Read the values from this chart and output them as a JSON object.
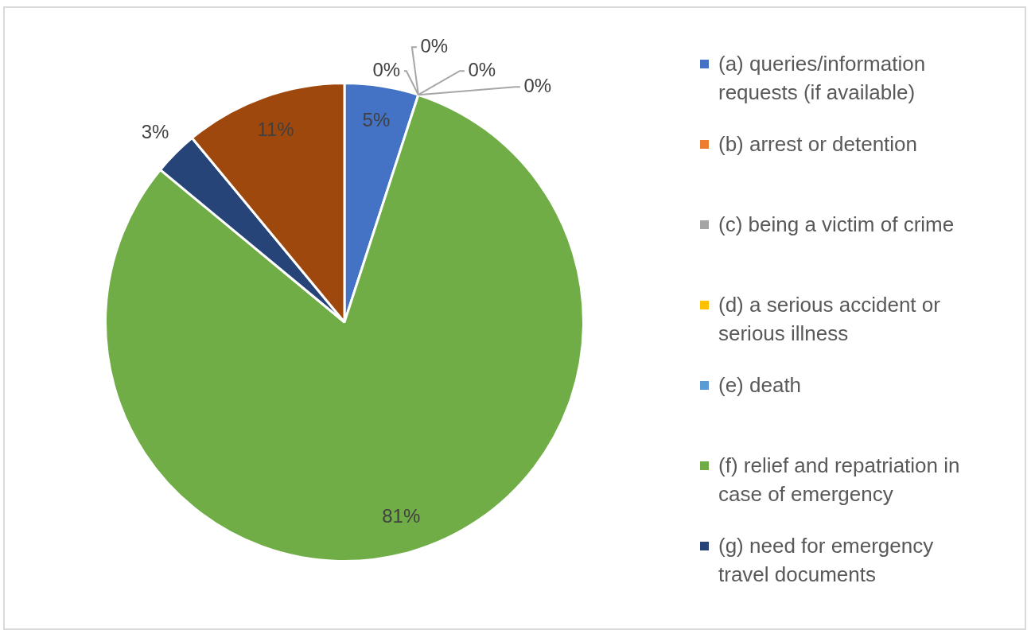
{
  "chart_data": {
    "type": "pie",
    "categories": [
      "(a) queries/information requests (if available)",
      "(b) arrest or detention",
      "(c) being a victim of crime",
      "(d) a serious accident or serious illness",
      "(e) death",
      "(f) relief and repatriation in case of emergency",
      "(g) need for emergency travel documents",
      null
    ],
    "values": [
      5,
      0,
      0,
      0,
      0,
      81,
      3,
      11
    ],
    "colors": [
      "#4472c4",
      "#ed7d31",
      "#a5a5a5",
      "#ffc000",
      "#5b9bd5",
      "#70ad47",
      "#264478",
      "#9e480e"
    ],
    "value_labels": [
      "5%",
      "0%",
      "0%",
      "0%",
      "0%",
      "81%",
      "3%",
      "11%"
    ],
    "legend": "right"
  }
}
